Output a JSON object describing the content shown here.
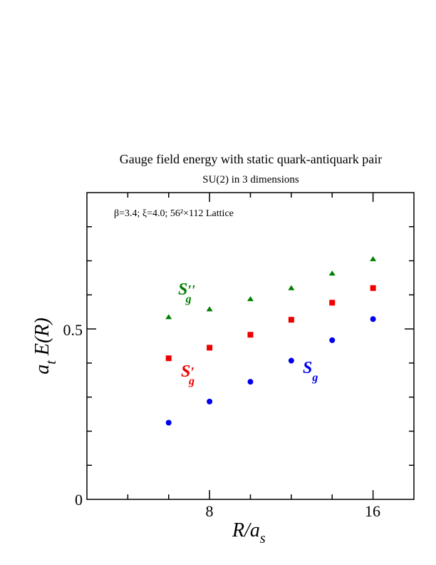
{
  "chart_data": {
    "type": "scatter",
    "title": "Gauge field energy with static quark-antiquark pair",
    "subtitle": "SU(2) in 3 dimensions",
    "annotation": "β=3.4; ξ=4.0; 56²×112 Lattice",
    "xlabel": "R/a_s",
    "ylabel": "a_t E(R)",
    "xlim": [
      2,
      18
    ],
    "ylim": [
      0,
      0.9
    ],
    "x_tick_labels": [
      "8",
      "16"
    ],
    "y_tick_labels": [
      "0",
      "0.5"
    ],
    "grid": false,
    "series": [
      {
        "name": "S_g",
        "marker": "circle",
        "color": "#0000ee",
        "points": [
          [
            6,
            0.225
          ],
          [
            8,
            0.287
          ],
          [
            10,
            0.345
          ],
          [
            12,
            0.407
          ],
          [
            14,
            0.467
          ],
          [
            16,
            0.529
          ]
        ]
      },
      {
        "name": "S'_g",
        "marker": "square",
        "color": "#ee0000",
        "points": [
          [
            6,
            0.414
          ],
          [
            8,
            0.445
          ],
          [
            10,
            0.483
          ],
          [
            12,
            0.527
          ],
          [
            14,
            0.577
          ],
          [
            16,
            0.62
          ]
        ]
      },
      {
        "name": "S''_g",
        "marker": "triangle",
        "color": "#007f00",
        "points": [
          [
            6,
            0.535
          ],
          [
            8,
            0.558
          ],
          [
            10,
            0.588
          ],
          [
            12,
            0.62
          ],
          [
            14,
            0.663
          ],
          [
            16,
            0.705
          ]
        ]
      }
    ]
  }
}
